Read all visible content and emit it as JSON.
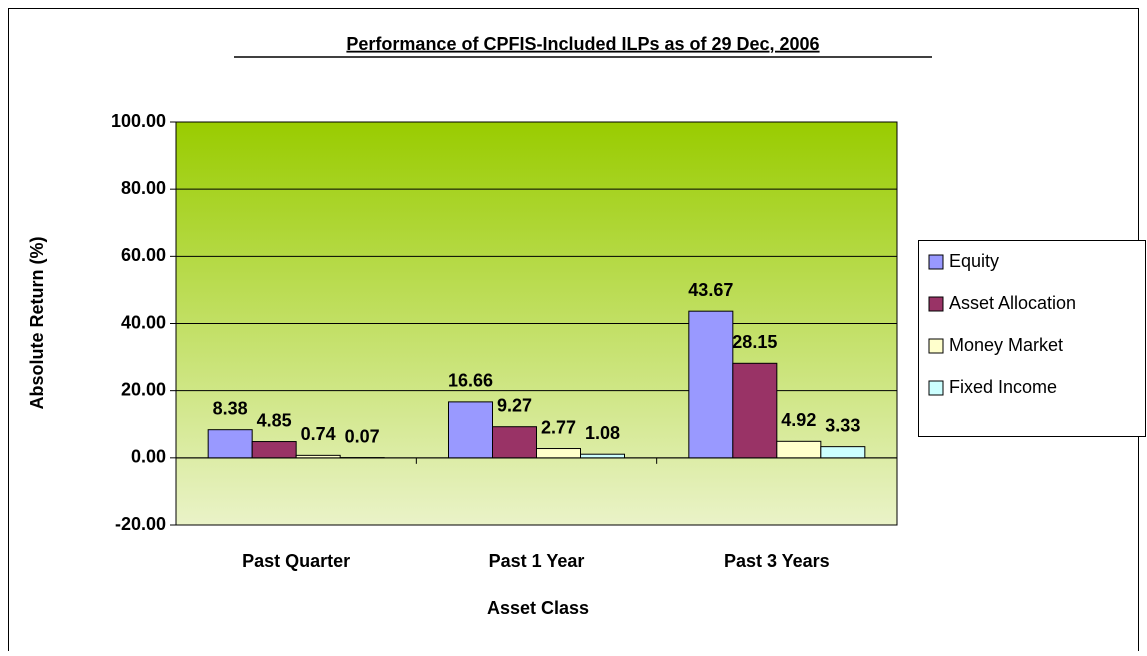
{
  "chart_data": {
    "type": "bar",
    "title": "Performance of CPFIS-Included ILPs as of 29 Dec, 2006",
    "x_label": "Asset Class",
    "y_label": "Absolute Return (%)",
    "categories": [
      "Past Quarter",
      "Past 1 Year",
      "Past 3 Years"
    ],
    "series": [
      {
        "name": "Equity",
        "color": "#9999ff",
        "values": [
          8.38,
          16.66,
          43.67
        ]
      },
      {
        "name": "Asset Allocation",
        "color": "#993366",
        "values": [
          4.85,
          9.27,
          28.15
        ]
      },
      {
        "name": "Money Market",
        "color": "#ffffcc",
        "values": [
          0.74,
          2.77,
          4.92
        ]
      },
      {
        "name": "Fixed Income",
        "color": "#ccffff",
        "values": [
          0.07,
          1.08,
          3.33
        ]
      }
    ],
    "ylim": [
      -20,
      100
    ],
    "yticks": [
      {
        "value": -20,
        "label": "-20.00"
      },
      {
        "value": 0,
        "label": "0.00"
      },
      {
        "value": 20,
        "label": "20.00"
      },
      {
        "value": 40,
        "label": "40.00"
      },
      {
        "value": 60,
        "label": "60.00"
      },
      {
        "value": 80,
        "label": "80.00"
      },
      {
        "value": 100,
        "label": "100.00"
      }
    ],
    "grid": true,
    "legend": "right"
  }
}
